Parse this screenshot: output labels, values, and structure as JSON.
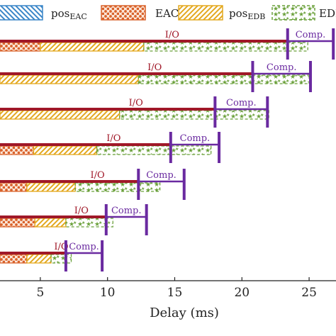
{
  "chart_data": {
    "type": "bar",
    "xlabel": "Delay (ms)",
    "xlim": [
      2.0,
      27.0
    ],
    "x_ticks": [
      5,
      10,
      15,
      20,
      25
    ],
    "legend": [
      {
        "key": "pos_eac",
        "text_main": "pos",
        "text_sub": "EAC",
        "color": "#3a86c8",
        "pattern": "backslash-hatch"
      },
      {
        "key": "eac",
        "text_main": "EAC",
        "text_sub": "",
        "color": "#d9622b",
        "pattern": "dots"
      },
      {
        "key": "pos_edb",
        "text_main": "pos",
        "text_sub": "EDB",
        "color": "#e3a81e",
        "pattern": "slash-hatch"
      },
      {
        "key": "edb",
        "text_main": "EDB",
        "text_sub": "",
        "color": "#6aa03a",
        "pattern": "stars"
      }
    ],
    "io_label": "I/O",
    "comp_label": "Comp.",
    "io_color": "#a01828",
    "comp_color": "#6a2aa0",
    "rows": [
      {
        "io_end": 23.4,
        "comp_end": 26.8,
        "segments": {
          "pos_eac": 0.0,
          "eac": 3.0,
          "pos_edb": 7.7,
          "edb": 12.2
        }
      },
      {
        "io_end": 20.8,
        "comp_end": 25.1,
        "segments": {
          "pos_eac": 0.0,
          "eac": 0.0,
          "pos_edb": 10.3,
          "edb": 12.8
        }
      },
      {
        "io_end": 18.0,
        "comp_end": 21.9,
        "segments": {
          "pos_eac": 0.0,
          "eac": 0.0,
          "pos_edb": 8.9,
          "edb": 11.1
        }
      },
      {
        "io_end": 14.7,
        "comp_end": 18.3,
        "segments": {
          "pos_eac": 0.0,
          "eac": 2.5,
          "pos_edb": 4.7,
          "edb": 8.5
        }
      },
      {
        "io_end": 12.3,
        "comp_end": 15.7,
        "segments": {
          "pos_eac": 0.0,
          "eac": 2.0,
          "pos_edb": 3.6,
          "edb": 6.3
        }
      },
      {
        "io_end": 9.9,
        "comp_end": 12.9,
        "segments": {
          "pos_eac": 0.0,
          "eac": 2.6,
          "pos_edb": 2.3,
          "edb": 3.5
        }
      },
      {
        "io_end": 6.9,
        "comp_end": 9.6,
        "segments": {
          "pos_eac": 0.0,
          "eac": 2.0,
          "pos_edb": 1.8,
          "edb": 1.5
        }
      }
    ]
  }
}
